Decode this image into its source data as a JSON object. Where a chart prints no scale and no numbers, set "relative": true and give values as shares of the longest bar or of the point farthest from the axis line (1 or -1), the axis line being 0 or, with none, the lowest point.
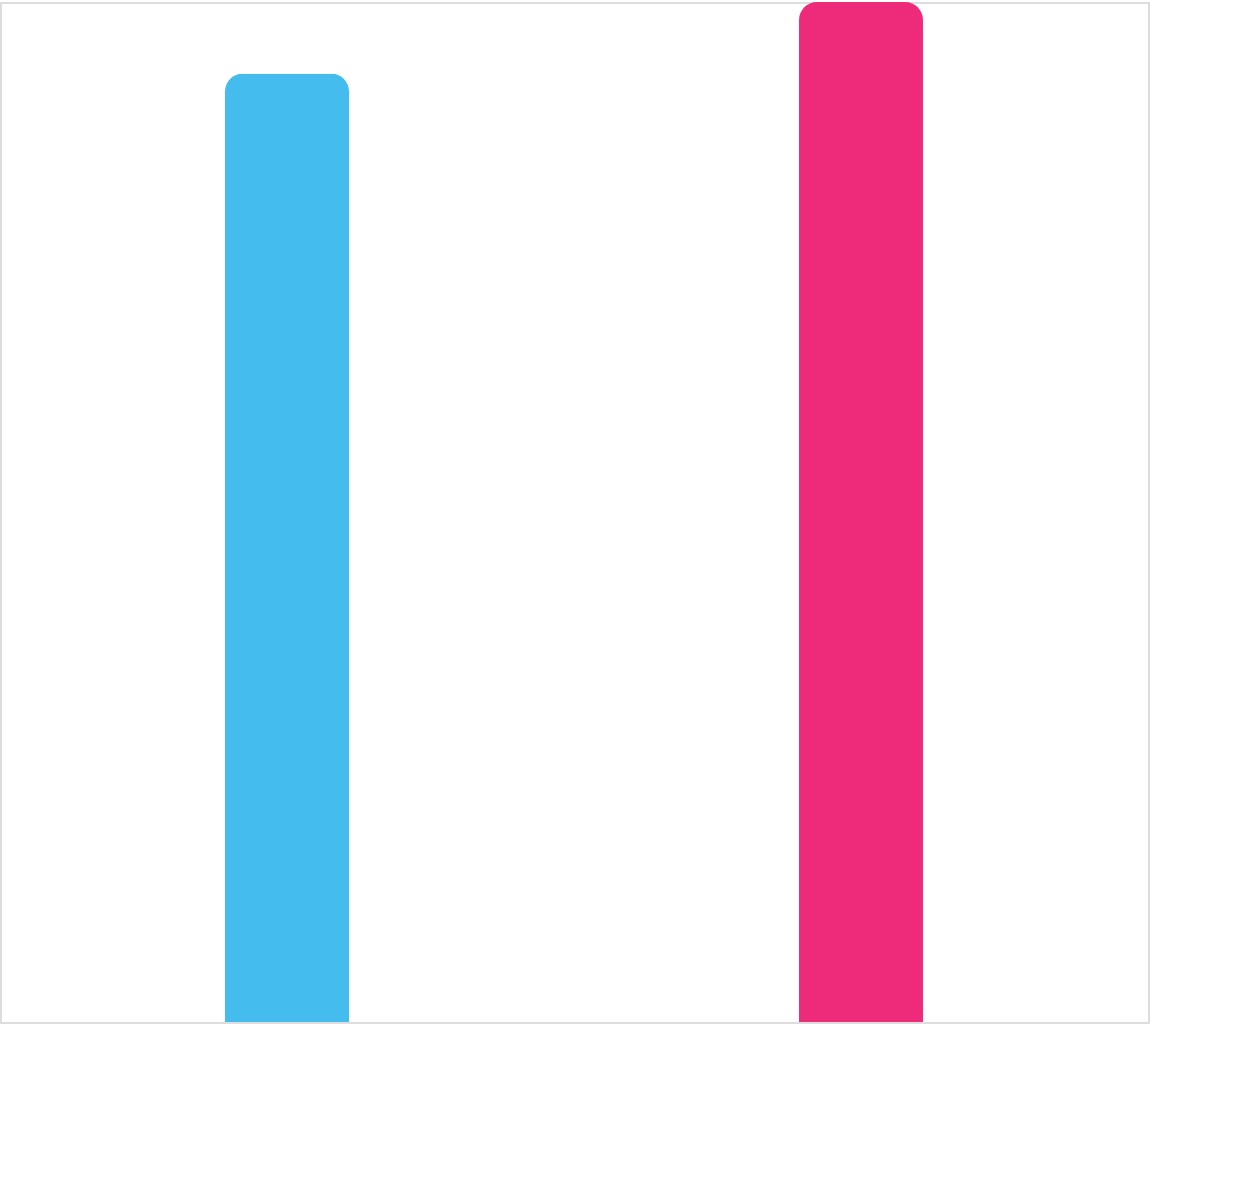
{
  "chart_data": {
    "type": "bar",
    "relative": true,
    "categories": [
      null,
      null
    ],
    "values": [
      0.93,
      1
    ],
    "colors": [
      "#44bced",
      "#ee2a7b"
    ]
  }
}
